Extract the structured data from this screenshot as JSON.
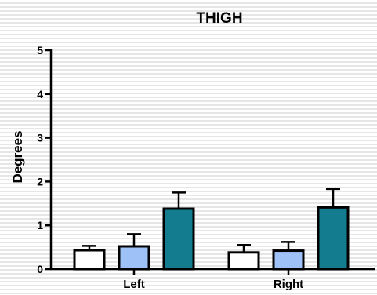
{
  "chart_data": {
    "type": "bar",
    "title": "THIGH",
    "xlabel": "",
    "ylabel": "Degrees",
    "categories": [
      "Left",
      "Right"
    ],
    "ylim": [
      0,
      5
    ],
    "yticks": [
      0,
      1,
      2,
      3,
      4,
      5
    ],
    "grid": "horizontal stripes",
    "legend": "none",
    "series": [
      {
        "color": "#ffffff",
        "values": [
          0.43,
          0.38
        ],
        "errors": [
          0.1,
          0.17
        ]
      },
      {
        "color": "#9ec1f7",
        "values": [
          0.52,
          0.42
        ],
        "errors": [
          0.28,
          0.2
        ]
      },
      {
        "color": "#137c8f",
        "values": [
          1.38,
          1.41
        ],
        "errors": [
          0.37,
          0.42
        ]
      }
    ]
  }
}
